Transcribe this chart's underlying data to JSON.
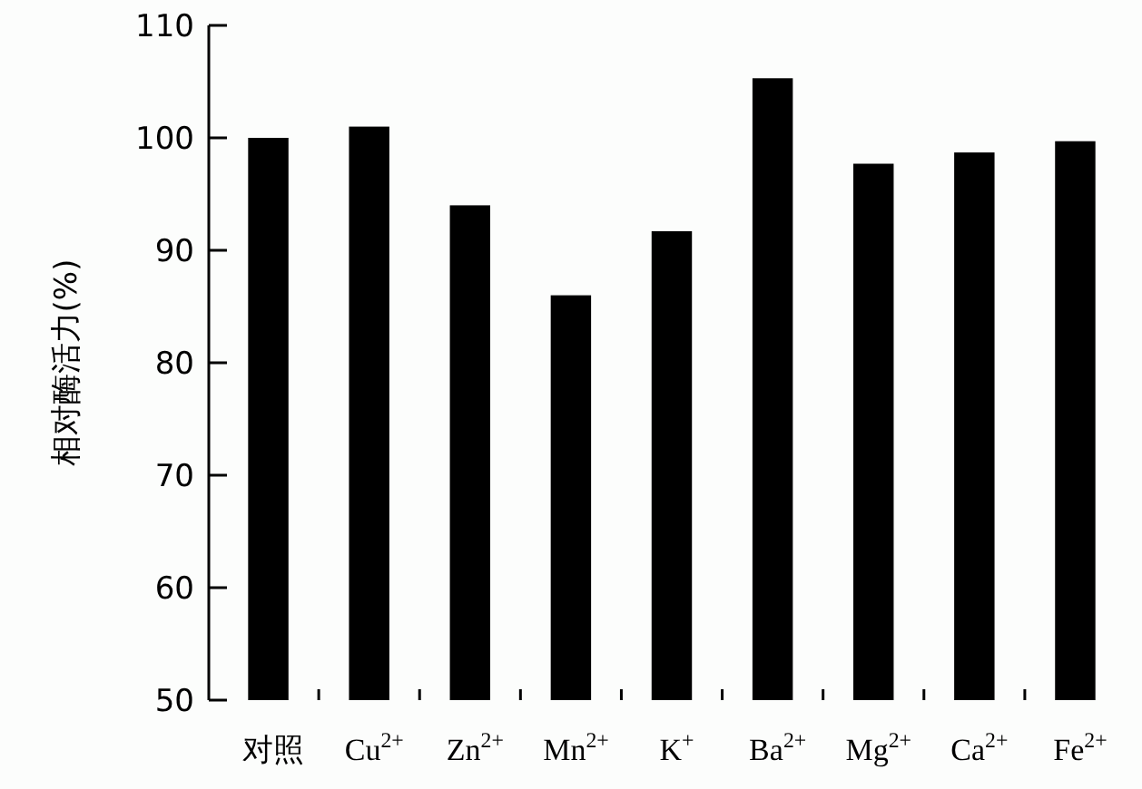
{
  "chart_data": {
    "type": "bar",
    "ylabel": "相对酶活力(%)",
    "categories": [
      "对照",
      "Cu$^{2+}$",
      "Zn$^{2+}$",
      "Mn$^{2+}$",
      "K$^{+}$",
      "Ba$^{2+}$",
      "Mg$^{2+}$",
      "Ca$^{2+}$",
      "Fe$^{2+}$"
    ],
    "values": [
      100,
      101,
      94,
      86,
      91.7,
      105.3,
      97.7,
      98.7,
      99.7
    ],
    "color": "#000000",
    "ylim": [
      50,
      110
    ],
    "yticks": [
      50,
      60,
      70,
      80,
      90,
      100,
      110
    ]
  }
}
